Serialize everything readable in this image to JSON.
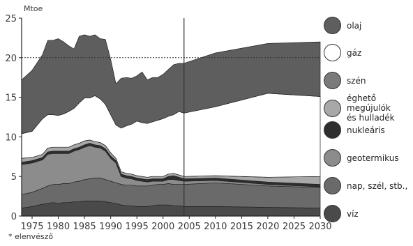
{
  "chart_data": {
    "type": "area",
    "unit_label": "Mtoe",
    "ylim": [
      0,
      25
    ],
    "yticks": [
      0,
      5,
      10,
      15,
      20,
      25
    ],
    "xlim": [
      1973,
      2030
    ],
    "xticks": [
      1975,
      1980,
      1985,
      1990,
      1995,
      2000,
      2005,
      2010,
      2015,
      2020,
      2025,
      2030
    ],
    "reference_year": 2004,
    "reference_level": 20,
    "x": [
      1973,
      1975,
      1977,
      1978,
      1979,
      1980,
      1981,
      1982,
      1983,
      1984,
      1985,
      1986,
      1987,
      1988,
      1989,
      1990,
      1991,
      1992,
      1993,
      1994,
      1995,
      1996,
      1997,
      1998,
      1999,
      2000,
      2001,
      2002,
      2003,
      2004,
      2010,
      2020,
      2030
    ],
    "series": [
      {
        "name": "víz",
        "color": "#4a4a4a",
        "values": [
          1.0,
          1.2,
          1.5,
          1.6,
          1.7,
          1.6,
          1.7,
          1.7,
          1.8,
          1.8,
          1.9,
          1.9,
          1.9,
          1.9,
          1.8,
          1.7,
          1.6,
          1.4,
          1.3,
          1.3,
          1.2,
          1.2,
          1.2,
          1.3,
          1.4,
          1.4,
          1.4,
          1.3,
          1.3,
          1.2,
          1.2,
          1.1,
          1.0
        ]
      },
      {
        "name": "nap, szél, stb.,",
        "color": "#6a6a6a",
        "values": [
          1.7,
          1.8,
          2.0,
          2.2,
          2.3,
          2.4,
          2.4,
          2.4,
          2.5,
          2.6,
          2.7,
          2.8,
          2.9,
          2.9,
          2.8,
          2.7,
          2.6,
          2.6,
          2.6,
          2.6,
          2.6,
          2.6,
          2.6,
          2.6,
          2.6,
          2.6,
          2.7,
          2.7,
          2.7,
          2.8,
          3.0,
          2.7,
          2.6
        ]
      },
      {
        "name": "geotermikus",
        "color": "#8c8c8c",
        "values": [
          3.8,
          3.7,
          3.6,
          4.0,
          3.9,
          3.9,
          3.8,
          3.8,
          3.9,
          4.0,
          4.1,
          4.2,
          3.9,
          3.8,
          3.6,
          2.9,
          2.5,
          1.0,
          0.9,
          0.8,
          0.7,
          0.6,
          0.5,
          0.5,
          0.4,
          0.4,
          0.5,
          0.6,
          0.5,
          0.4,
          0.3,
          0.2,
          0.1
        ]
      },
      {
        "name": "nukleáris",
        "color": "#2e2e2e",
        "values": [
          0.3,
          0.3,
          0.3,
          0.3,
          0.3,
          0.3,
          0.3,
          0.3,
          0.3,
          0.3,
          0.3,
          0.3,
          0.3,
          0.3,
          0.3,
          0.3,
          0.3,
          0.3,
          0.3,
          0.3,
          0.3,
          0.3,
          0.3,
          0.3,
          0.3,
          0.3,
          0.4,
          0.5,
          0.4,
          0.3,
          0.3,
          0.3,
          0.3
        ]
      },
      {
        "name": "éghető megújulók és hulladék",
        "color": "#a8a8a8",
        "values": [
          0.5,
          0.4,
          0.4,
          0.5,
          0.5,
          0.5,
          0.5,
          0.5,
          0.5,
          0.5,
          0.5,
          0.4,
          0.4,
          0.4,
          0.4,
          0.4,
          0.3,
          0.3,
          0.3,
          0.3,
          0.3,
          0.3,
          0.3,
          0.3,
          0.3,
          0.3,
          0.3,
          0.3,
          0.3,
          0.3,
          0.3,
          0.6,
          1.0
        ]
      },
      {
        "name": "szén",
        "color": "#7a7a7a",
        "values": [
          0.0,
          0.0,
          0.0,
          0.0,
          0.0,
          0.0,
          0.0,
          0.0,
          0.0,
          0.0,
          0.0,
          0.0,
          0.0,
          0.0,
          0.0,
          0.0,
          0.0,
          0.0,
          0.0,
          0.0,
          0.0,
          0.0,
          0.0,
          0.0,
          0.0,
          0.0,
          0.0,
          0.0,
          0.0,
          0.0,
          0.0,
          0.0,
          0.0
        ]
      },
      {
        "name": "gáz",
        "color": "#ffffff",
        "values": [
          3.1,
          3.3,
          4.5,
          4.2,
          4.1,
          4.0,
          4.2,
          4.5,
          4.6,
          5.1,
          5.4,
          5.3,
          5.8,
          5.5,
          5.2,
          4.8,
          4.2,
          5.5,
          6.0,
          6.3,
          6.9,
          6.8,
          6.8,
          6.9,
          7.1,
          7.3,
          7.3,
          7.4,
          8.0,
          8.0,
          8.7,
          10.6,
          10.1
        ]
      },
      {
        "name": "olaj",
        "color": "#5e5e5e",
        "values": [
          6.8,
          7.7,
          8.1,
          9.4,
          9.4,
          9.7,
          9.1,
          8.3,
          7.5,
          8.4,
          8.0,
          7.8,
          7.7,
          7.6,
          8.2,
          7.0,
          5.2,
          6.3,
          6.1,
          5.8,
          5.7,
          6.4,
          5.5,
          5.6,
          5.4,
          5.6,
          5.9,
          6.3,
          6.1,
          6.3,
          6.8,
          6.3,
          6.9
        ]
      }
    ]
  },
  "legend": [
    {
      "label": "olaj",
      "color": "#5e5e5e"
    },
    {
      "label": "gáz",
      "color": "#ffffff"
    },
    {
      "label": "szén",
      "color": "#7a7a7a"
    },
    {
      "label": "éghető\nmegújulók\nés hulladék",
      "color": "#a8a8a8"
    },
    {
      "label": "nukleáris",
      "color": "#2e2e2e"
    },
    {
      "label": "geotermikus",
      "color": "#8c8c8c"
    },
    {
      "label": "nap, szél, stb.,",
      "color": "#6a6a6a"
    },
    {
      "label": "víz",
      "color": "#4a4a4a"
    }
  ],
  "footnote": "* elenvésző"
}
